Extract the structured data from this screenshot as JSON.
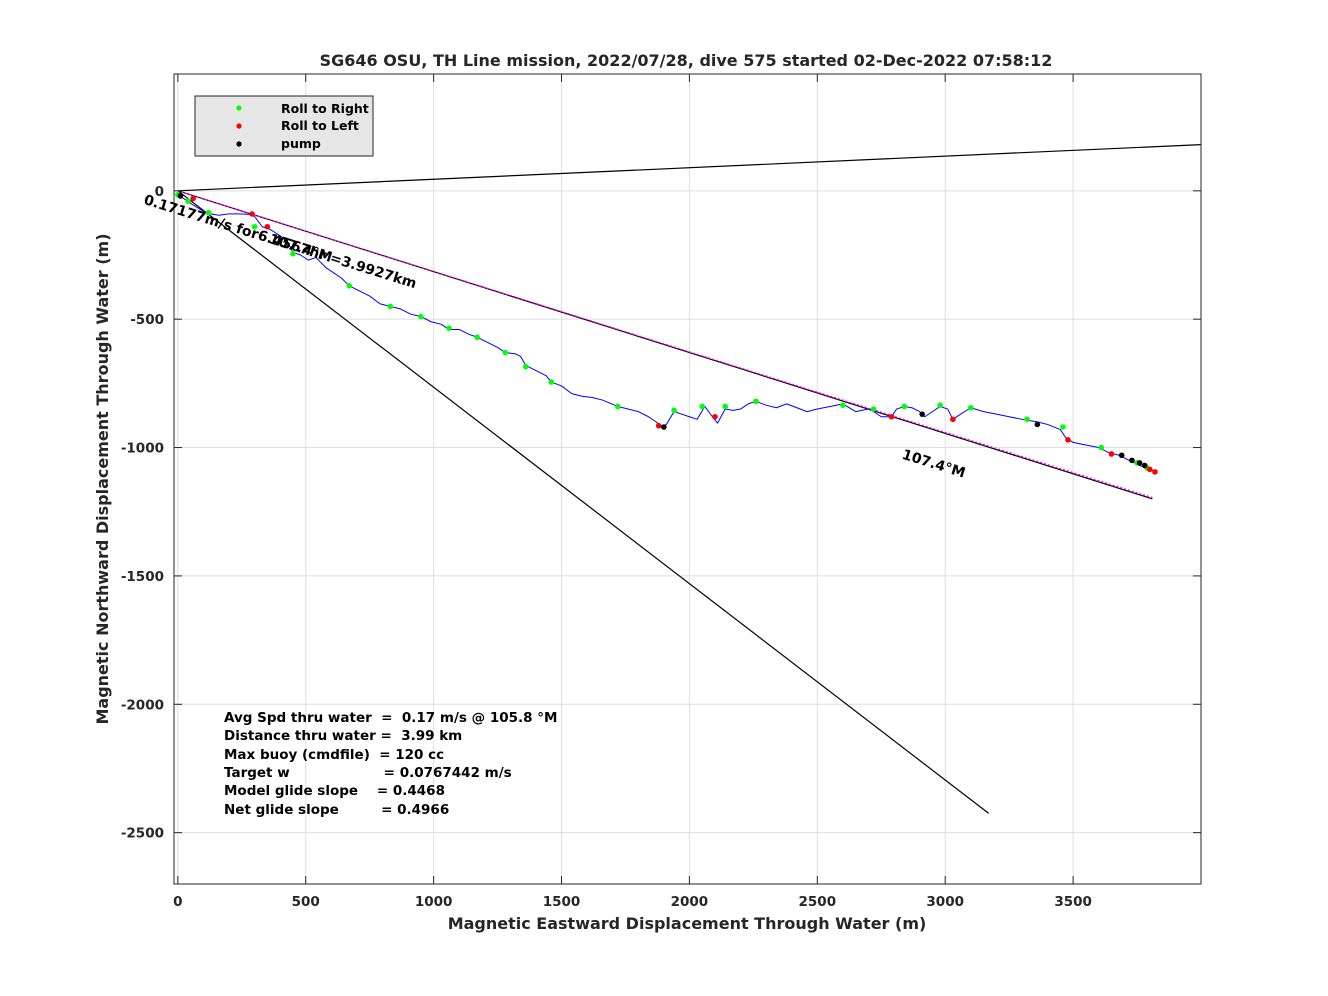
{
  "chart_data": {
    "type": "line",
    "title": "SG646 OSU, TH Line mission, 2022/07/28, dive 575 started 02-Dec-2022 07:58:12",
    "xlabel": "Magnetic Eastward Displacement Through Water (m)",
    "ylabel": "Magnetic Northward Displacement Through Water (m)",
    "xlim": [
      -15,
      4000
    ],
    "ylim": [
      -2700,
      455
    ],
    "xticks": [
      0,
      500,
      1000,
      1500,
      2000,
      2500,
      3000,
      3500
    ],
    "yticks": [
      0,
      -500,
      -1000,
      -1500,
      -2000,
      -2500
    ],
    "grid": true,
    "legend": {
      "position": "top-left",
      "entries": [
        {
          "label": "Roll to Right",
          "color": "#00ff00"
        },
        {
          "label": "Roll to Left",
          "color": "#ff0000"
        },
        {
          "label": "pump",
          "color": "#000000"
        }
      ]
    },
    "series": [
      {
        "color": "#0000ff",
        "x": [
          0,
          30,
          60,
          100,
          130,
          160,
          200,
          240,
          280,
          300,
          330,
          360,
          400,
          430,
          450,
          480,
          510,
          540,
          580,
          610,
          640,
          670,
          710,
          750,
          790,
          830,
          870,
          910,
          950,
          990,
          1030,
          1060,
          1100,
          1140,
          1170,
          1210,
          1250,
          1280,
          1320,
          1340,
          1360,
          1400,
          1440,
          1460,
          1500,
          1540,
          1580,
          1620,
          1660,
          1720,
          1760,
          1800,
          1840,
          1870,
          1890,
          1910,
          1940,
          1970,
          2000,
          2030,
          2060,
          2090,
          2110,
          2140,
          2170,
          2200,
          2230,
          2260,
          2300,
          2340,
          2380,
          2420,
          2460,
          2500,
          2550,
          2600,
          2650,
          2700,
          2720,
          2750,
          2790,
          2810,
          2840,
          2870,
          2900,
          2920,
          2950,
          2980,
          3010,
          3030,
          3060,
          3100,
          3150,
          3200,
          3250,
          3300,
          3330,
          3360,
          3400,
          3450,
          3470,
          3500,
          3550,
          3600,
          3640,
          3680,
          3720,
          3760,
          3790,
          3810,
          3830
        ],
        "y": [
          -15,
          -35,
          -55,
          -80,
          -90,
          -95,
          -90,
          -90,
          -92,
          -100,
          -140,
          -150,
          -175,
          -200,
          -240,
          -250,
          -270,
          -260,
          -300,
          -320,
          -340,
          -370,
          -390,
          -410,
          -440,
          -450,
          -460,
          -480,
          -490,
          -510,
          -520,
          -540,
          -540,
          -560,
          -570,
          -590,
          -610,
          -630,
          -635,
          -645,
          -680,
          -700,
          -720,
          -745,
          -760,
          -790,
          -800,
          -805,
          -815,
          -840,
          -850,
          -860,
          -880,
          -900,
          -920,
          -910,
          -860,
          -870,
          -880,
          -890,
          -840,
          -880,
          -905,
          -850,
          -855,
          -850,
          -830,
          -820,
          -835,
          -845,
          -830,
          -845,
          -860,
          -850,
          -840,
          -830,
          -860,
          -850,
          -860,
          -880,
          -880,
          -850,
          -840,
          -845,
          -860,
          -880,
          -860,
          -840,
          -850,
          -890,
          -870,
          -845,
          -860,
          -870,
          -880,
          -890,
          -895,
          -900,
          -910,
          -930,
          -960,
          -980,
          -990,
          -1000,
          -1020,
          -1030,
          -1050,
          -1070,
          -1080,
          -1090,
          -1090
        ]
      }
    ],
    "events": {
      "roll_right": {
        "x": [
          0,
          40,
          120,
          300,
          450,
          670,
          830,
          950,
          1060,
          1170,
          1280,
          1360,
          1460,
          1720,
          1940,
          2050,
          2140,
          2260,
          2600,
          2720,
          2840,
          2980,
          3100,
          3320,
          3460,
          3610,
          3750,
          3790
        ],
        "y": [
          -15,
          -40,
          -85,
          -140,
          -245,
          -370,
          -450,
          -490,
          -535,
          -570,
          -630,
          -685,
          -745,
          -840,
          -855,
          -840,
          -840,
          -820,
          -835,
          -850,
          -840,
          -835,
          -845,
          -890,
          -920,
          -1000,
          -1060,
          -1080
        ]
      },
      "roll_left": {
        "x": [
          60,
          290,
          350,
          1880,
          2100,
          2790,
          3030,
          3480,
          3650,
          3800,
          3820
        ],
        "y": [
          -30,
          -90,
          -140,
          -915,
          -880,
          -880,
          -890,
          -970,
          -1025,
          -1085,
          -1095
        ]
      },
      "pump": {
        "x": [
          10,
          1900,
          2910,
          3360,
          3690,
          3730,
          3760,
          3780
        ],
        "y": [
          -20,
          -920,
          -870,
          -910,
          -1030,
          -1050,
          -1060,
          -1070
        ]
      }
    },
    "reference_lines": [
      {
        "color": "#000000",
        "x": [
          0,
          4000
        ],
        "y": [
          0,
          180
        ]
      },
      {
        "color": "#000000",
        "x": [
          0,
          3810
        ],
        "y": [
          0,
          -1200
        ]
      },
      {
        "color": "#000000",
        "x": [
          0,
          3170
        ],
        "y": [
          0,
          -2425
        ]
      },
      {
        "color": "#ff00ff",
        "x": [
          0,
          3810
        ],
        "y": [
          0,
          -1195
        ]
      }
    ],
    "annotations": [
      {
        "text": "0.17177m/s for6.4567hr =3.9927km",
        "x": 395,
        "y": -215,
        "rotation": 17.3
      },
      {
        "text": "107.4°M",
        "x": 475,
        "y": -240,
        "rotation": 17.3
      },
      {
        "text": "107.4°M",
        "x": 2950,
        "y": -1080,
        "rotation": 17.3
      }
    ],
    "stats": [
      "Avg Spd thru water  =  0.17 m/s @ 105.8 °M",
      "Distance thru water =  3.99 km",
      "Max buoy (cmdfile)  = 120 cc",
      "Target w                    = 0.0767442 m/s",
      "Model glide slope    = 0.4468",
      "Net glide slope         = 0.4966"
    ]
  }
}
